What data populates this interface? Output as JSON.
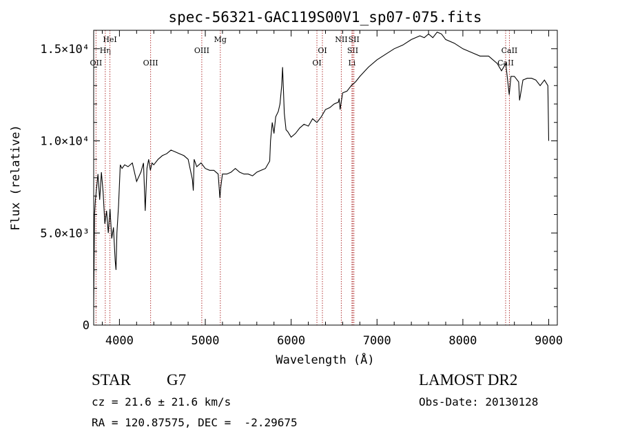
{
  "chart_data": {
    "type": "line",
    "title": "spec-56321-GAC119S00V1_sp07-075.fits",
    "xlabel": "Wavelength (Å)",
    "ylabel": "Flux (relative)",
    "xlim": [
      3700,
      9100
    ],
    "ylim": [
      0,
      16000
    ],
    "xticks": [
      {
        "value": 4000,
        "label": "4000"
      },
      {
        "value": 5000,
        "label": "5000"
      },
      {
        "value": 6000,
        "label": "6000"
      },
      {
        "value": 7000,
        "label": "7000"
      },
      {
        "value": 8000,
        "label": "8000"
      },
      {
        "value": 9000,
        "label": "9000"
      }
    ],
    "yticks": [
      {
        "value": 0,
        "label": "0"
      },
      {
        "value": 5000,
        "label": "5.0×10³"
      },
      {
        "value": 10000,
        "label": "1.0×10⁴"
      },
      {
        "value": 15000,
        "label": "1.5×10⁴"
      }
    ],
    "grid": false,
    "series": [
      {
        "x": [
          3700,
          3710,
          3720,
          3735,
          3750,
          3770,
          3790,
          3810,
          3830,
          3850,
          3870,
          3890,
          3910,
          3930,
          3950,
          3960,
          3970,
          3990,
          4010,
          4030,
          4060,
          4100,
          4150,
          4200,
          4250,
          4280,
          4300,
          4320,
          4340,
          4360,
          4380,
          4400,
          4450,
          4500,
          4550,
          4600,
          4650,
          4700,
          4750,
          4800,
          4850,
          4860,
          4870,
          4900,
          4950,
          5000,
          5050,
          5100,
          5150,
          5170,
          5180,
          5200,
          5250,
          5300,
          5350,
          5400,
          5450,
          5500,
          5550,
          5600,
          5650,
          5700,
          5750,
          5760,
          5780,
          5800,
          5820,
          5850,
          5870,
          5890,
          5900,
          5920,
          5940,
          5960,
          6000,
          6050,
          6100,
          6150,
          6200,
          6250,
          6300,
          6350,
          6400,
          6450,
          6500,
          6550,
          6560,
          6570,
          6600,
          6650,
          6700,
          6750,
          6800,
          6900,
          7000,
          7100,
          7200,
          7300,
          7400,
          7500,
          7550,
          7600,
          7650,
          7700,
          7750,
          7800,
          7900,
          8000,
          8100,
          8200,
          8300,
          8400,
          8450,
          8500,
          8540,
          8560,
          8600,
          8650,
          8660,
          8700,
          8750,
          8800,
          8850,
          8900,
          8950,
          8990,
          9000
        ],
        "y": [
          1000,
          6000,
          6800,
          7500,
          8200,
          6800,
          8300,
          7200,
          5500,
          6200,
          5000,
          6300,
          4700,
          5300,
          3500,
          3000,
          5000,
          6500,
          8700,
          8500,
          8700,
          8600,
          8800,
          7800,
          8300,
          8800,
          6200,
          8500,
          9000,
          8400,
          8800,
          8700,
          9000,
          9200,
          9300,
          9500,
          9400,
          9300,
          9200,
          9000,
          7900,
          7300,
          9000,
          8600,
          8800,
          8500,
          8400,
          8400,
          8200,
          6900,
          7500,
          8200,
          8200,
          8300,
          8500,
          8300,
          8200,
          8200,
          8100,
          8300,
          8400,
          8500,
          8900,
          10000,
          11000,
          10400,
          11300,
          11600,
          12000,
          13000,
          14000,
          11500,
          10600,
          10500,
          10200,
          10400,
          10700,
          10900,
          10800,
          11200,
          11000,
          11300,
          11700,
          11800,
          12000,
          12100,
          12300,
          11700,
          12600,
          12700,
          13000,
          13200,
          13500,
          14000,
          14400,
          14700,
          15000,
          15200,
          15500,
          15700,
          15600,
          15800,
          15600,
          15900,
          15800,
          15500,
          15300,
          15000,
          14800,
          14600,
          14600,
          14200,
          13800,
          14200,
          12500,
          13500,
          13500,
          13200,
          12200,
          13300,
          13400,
          13400,
          13300,
          13000,
          13300,
          13000,
          10000
        ]
      }
    ],
    "lines": [
      {
        "x": 3727,
        "label": "OII",
        "row": 3
      },
      {
        "x": 3835,
        "label": "Hη",
        "row": 2
      },
      {
        "x": 3889,
        "label": "HeI",
        "row": 1
      },
      {
        "x": 4363,
        "label": "OIII",
        "row": 3
      },
      {
        "x": 4959,
        "label": "OIII",
        "row": 2
      },
      {
        "x": 5175,
        "label": "Mg",
        "row": 1
      },
      {
        "x": 6300,
        "label": "OI",
        "row": 3
      },
      {
        "x": 6364,
        "label": "OI",
        "row": 2
      },
      {
        "x": 6584,
        "label": "NII",
        "row": 1
      },
      {
        "x": 6708,
        "label": "Li",
        "row": 3
      },
      {
        "x": 6717,
        "label": "SII",
        "row": 2
      },
      {
        "x": 6731,
        "label": "SII",
        "row": 1
      },
      {
        "x": 8498,
        "label": "CaII",
        "row": 3
      },
      {
        "x": 8542,
        "label": "CaII",
        "row": 2
      }
    ]
  },
  "info": {
    "class_label": "STAR",
    "subclass": "G7",
    "survey": "LAMOST DR2",
    "cz": "cz = 21.6 ± 21.6 km/s",
    "obs_date": "Obs-Date: 20130128",
    "radec": "RA = 120.87575, DEC =  -2.29675"
  }
}
